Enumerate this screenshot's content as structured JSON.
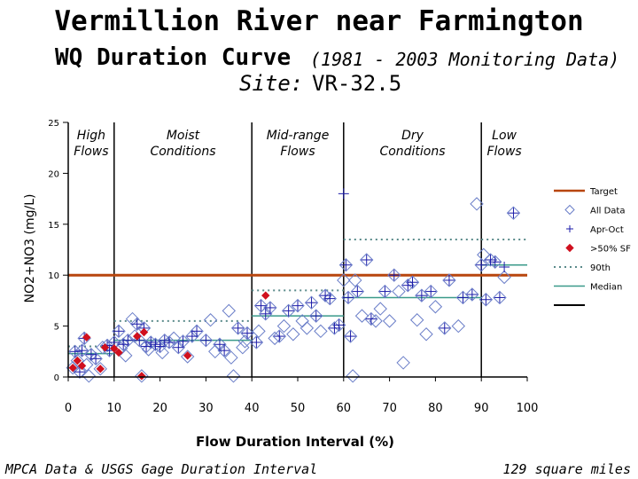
{
  "header": {
    "title": "Vermillion River near Farmington",
    "subtitle": "WQ Duration Curve",
    "subtitle_note": "(1981 - 2003 Monitoring Data)",
    "site_label": "Site:",
    "site_value": "VR-32.5"
  },
  "footer": {
    "left": "MPCA Data & USGS Gage Duration Interval",
    "right": "129 square miles"
  },
  "chart_data": {
    "type": "scatter",
    "xlabel": "Flow Duration Interval (%)",
    "ylabel": "NO2+NO3 (mg/L)",
    "xlim": [
      0,
      100
    ],
    "ylim": [
      0,
      25
    ],
    "x_ticks": [
      "0",
      "10",
      "20",
      "30",
      "40",
      "50",
      "60",
      "70",
      "80",
      "90",
      "100"
    ],
    "y_ticks": [
      "0",
      "5",
      "10",
      "15",
      "20",
      "25"
    ],
    "zones": [
      {
        "label": [
          "High",
          "Flows"
        ],
        "start": 0,
        "end": 10
      },
      {
        "label": [
          "Moist",
          "Conditions"
        ],
        "start": 10,
        "end": 40
      },
      {
        "label": [
          "Mid-range",
          "Flows"
        ],
        "start": 40,
        "end": 60
      },
      {
        "label": [
          "Dry",
          "Conditions"
        ],
        "start": 60,
        "end": 90
      },
      {
        "label": [
          "Low",
          "Flows"
        ],
        "start": 90,
        "end": 100
      }
    ],
    "zone_boundaries": [
      10,
      40,
      60,
      90
    ],
    "target": 10,
    "legend": {
      "position": "right",
      "entries": [
        "Target",
        "All Data",
        "Apr-Oct",
        ">50% SF",
        "90th",
        "Median"
      ]
    },
    "colors": {
      "target": "#b8460e",
      "all_data": "#6a7ec8",
      "apr_oct": "#1a1aa8",
      "gt50sf": "#d0101e",
      "p90": "#5a8a8a",
      "median": "#3a9a8a"
    },
    "median_segments": [
      {
        "x0": 0,
        "x1": 10,
        "y": 2.3
      },
      {
        "x0": 10,
        "x1": 40,
        "y": 3.6
      },
      {
        "x0": 40,
        "x1": 60,
        "y": 6.0
      },
      {
        "x0": 60,
        "x1": 90,
        "y": 7.8
      },
      {
        "x0": 90,
        "x1": 100,
        "y": 11.0
      }
    ],
    "p90_segments": [
      {
        "x0": 0,
        "x1": 10,
        "y": 3.0
      },
      {
        "x0": 10,
        "x1": 40,
        "y": 5.5
      },
      {
        "x0": 40,
        "x1": 60,
        "y": 8.5
      },
      {
        "x0": 60,
        "x1": 90,
        "y": 13.5
      },
      {
        "x0": 90,
        "x1": 100,
        "y": 13.5
      }
    ],
    "series": [
      {
        "name": "All Data",
        "marker": "diamond",
        "points": [
          [
            1,
            0.9
          ],
          [
            1.5,
            2.5
          ],
          [
            2,
            1.6
          ],
          [
            2.5,
            0.5
          ],
          [
            3,
            2.6
          ],
          [
            3.5,
            3.8
          ],
          [
            4,
            1.2
          ],
          [
            4.5,
            0.1
          ],
          [
            5,
            2.2
          ],
          [
            6,
            1.8
          ],
          [
            7,
            0.8
          ],
          [
            7.5,
            2.9
          ],
          [
            8.5,
            3.1
          ],
          [
            9,
            2.6
          ],
          [
            10,
            3.4
          ],
          [
            11,
            4.5
          ],
          [
            11.5,
            2.8
          ],
          [
            12,
            3.2
          ],
          [
            12.5,
            2.1
          ],
          [
            13,
            3.6
          ],
          [
            14,
            5.7
          ],
          [
            14.5,
            4.0
          ],
          [
            15,
            5.2
          ],
          [
            15.5,
            3.6
          ],
          [
            16,
            0.1
          ],
          [
            16.5,
            4.8
          ],
          [
            17,
            3.0
          ],
          [
            17.5,
            2.7
          ],
          [
            18,
            3.4
          ],
          [
            19,
            3.2
          ],
          [
            20,
            3.0
          ],
          [
            20.5,
            2.4
          ],
          [
            21,
            3.6
          ],
          [
            22,
            3.4
          ],
          [
            23,
            3.8
          ],
          [
            24,
            2.9
          ],
          [
            25,
            3.5
          ],
          [
            26,
            2.0
          ],
          [
            27,
            4.0
          ],
          [
            28,
            4.5
          ],
          [
            30,
            3.6
          ],
          [
            31,
            5.6
          ],
          [
            32,
            2.5
          ],
          [
            33,
            3.2
          ],
          [
            34,
            2.6
          ],
          [
            35,
            6.5
          ],
          [
            35.5,
            1.9
          ],
          [
            36,
            0.1
          ],
          [
            37,
            4.8
          ],
          [
            38,
            2.9
          ],
          [
            38.5,
            3.5
          ],
          [
            39,
            4.3
          ],
          [
            41,
            3.4
          ],
          [
            41.5,
            4.5
          ],
          [
            42,
            7.0
          ],
          [
            43,
            6.2
          ],
          [
            44,
            6.8
          ],
          [
            45,
            3.8
          ],
          [
            46,
            4.0
          ],
          [
            47,
            5.0
          ],
          [
            48,
            6.5
          ],
          [
            49,
            4.2
          ],
          [
            50,
            7.0
          ],
          [
            51,
            5.5
          ],
          [
            52,
            4.8
          ],
          [
            53,
            7.3
          ],
          [
            54,
            6.0
          ],
          [
            55,
            4.5
          ],
          [
            56,
            8.0
          ],
          [
            57,
            7.7
          ],
          [
            58,
            4.8
          ],
          [
            59,
            5.1
          ],
          [
            60,
            9.5
          ],
          [
            60.5,
            11.0
          ],
          [
            61,
            7.8
          ],
          [
            61.5,
            4.0
          ],
          [
            62,
            0.1
          ],
          [
            62.5,
            9.5
          ],
          [
            63,
            8.4
          ],
          [
            64,
            6.0
          ],
          [
            65,
            11.5
          ],
          [
            66,
            5.7
          ],
          [
            67,
            5.5
          ],
          [
            68,
            6.7
          ],
          [
            69,
            8.4
          ],
          [
            70,
            5.5
          ],
          [
            71,
            10.0
          ],
          [
            72,
            8.4
          ],
          [
            73,
            1.4
          ],
          [
            74,
            9.0
          ],
          [
            75,
            9.3
          ],
          [
            76,
            5.6
          ],
          [
            77,
            8.0
          ],
          [
            78,
            4.2
          ],
          [
            79,
            8.4
          ],
          [
            80,
            6.9
          ],
          [
            82,
            4.8
          ],
          [
            83,
            9.5
          ],
          [
            85,
            5.0
          ],
          [
            86,
            7.8
          ],
          [
            88,
            8.1
          ],
          [
            89,
            17.0
          ],
          [
            90,
            11.0
          ],
          [
            90.5,
            12.0
          ],
          [
            91,
            7.6
          ],
          [
            92,
            11.5
          ],
          [
            93,
            11.3
          ],
          [
            94,
            7.8
          ],
          [
            95,
            9.8
          ],
          [
            97,
            16.1
          ]
        ]
      },
      {
        "name": "Apr-Oct",
        "marker": "plus",
        "points": [
          [
            1.5,
            2.5
          ],
          [
            2.5,
            0.5
          ],
          [
            3,
            2.6
          ],
          [
            3.5,
            3.8
          ],
          [
            5,
            2.2
          ],
          [
            6,
            1.8
          ],
          [
            8.5,
            3.1
          ],
          [
            9,
            2.6
          ],
          [
            10,
            3.4
          ],
          [
            11,
            4.5
          ],
          [
            12,
            3.2
          ],
          [
            13,
            3.6
          ],
          [
            15,
            5.2
          ],
          [
            15.5,
            3.6
          ],
          [
            16.5,
            4.8
          ],
          [
            17,
            3.0
          ],
          [
            18,
            3.4
          ],
          [
            19,
            3.2
          ],
          [
            20,
            3.0
          ],
          [
            21,
            3.6
          ],
          [
            22,
            3.4
          ],
          [
            24,
            2.9
          ],
          [
            25,
            3.5
          ],
          [
            27,
            4.0
          ],
          [
            28,
            4.5
          ],
          [
            30,
            3.6
          ],
          [
            33,
            3.2
          ],
          [
            34,
            2.6
          ],
          [
            37,
            4.8
          ],
          [
            39,
            4.3
          ],
          [
            41,
            3.4
          ],
          [
            42,
            7.0
          ],
          [
            43,
            6.2
          ],
          [
            44,
            6.8
          ],
          [
            46,
            4.0
          ],
          [
            48,
            6.5
          ],
          [
            50,
            7.0
          ],
          [
            53,
            7.3
          ],
          [
            54,
            6.0
          ],
          [
            56,
            8.0
          ],
          [
            57,
            7.7
          ],
          [
            58,
            4.8
          ],
          [
            59,
            5.1
          ],
          [
            60,
            18.0
          ],
          [
            60.5,
            11.0
          ],
          [
            61,
            7.8
          ],
          [
            61.5,
            4.0
          ],
          [
            63,
            8.4
          ],
          [
            65,
            11.5
          ],
          [
            66,
            5.7
          ],
          [
            69,
            8.4
          ],
          [
            71,
            10.0
          ],
          [
            74,
            9.0
          ],
          [
            75,
            9.3
          ],
          [
            77,
            8.0
          ],
          [
            79,
            8.4
          ],
          [
            82,
            4.8
          ],
          [
            83,
            9.5
          ],
          [
            86,
            7.8
          ],
          [
            88,
            8.1
          ],
          [
            90,
            11.0
          ],
          [
            91,
            7.6
          ],
          [
            92,
            11.5
          ],
          [
            93,
            11.3
          ],
          [
            94,
            7.8
          ],
          [
            95,
            10.8
          ],
          [
            97,
            16.1
          ]
        ]
      },
      {
        "name": ">50% SF",
        "marker": "filled-diamond",
        "points": [
          [
            1,
            0.9
          ],
          [
            2,
            1.6
          ],
          [
            3,
            1.1
          ],
          [
            4,
            3.9
          ],
          [
            7,
            0.8
          ],
          [
            8,
            2.9
          ],
          [
            10,
            2.8
          ],
          [
            11,
            2.4
          ],
          [
            15,
            4.0
          ],
          [
            16,
            0.1
          ],
          [
            16.5,
            4.4
          ],
          [
            26,
            2.1
          ],
          [
            43,
            8.0
          ]
        ]
      }
    ]
  }
}
